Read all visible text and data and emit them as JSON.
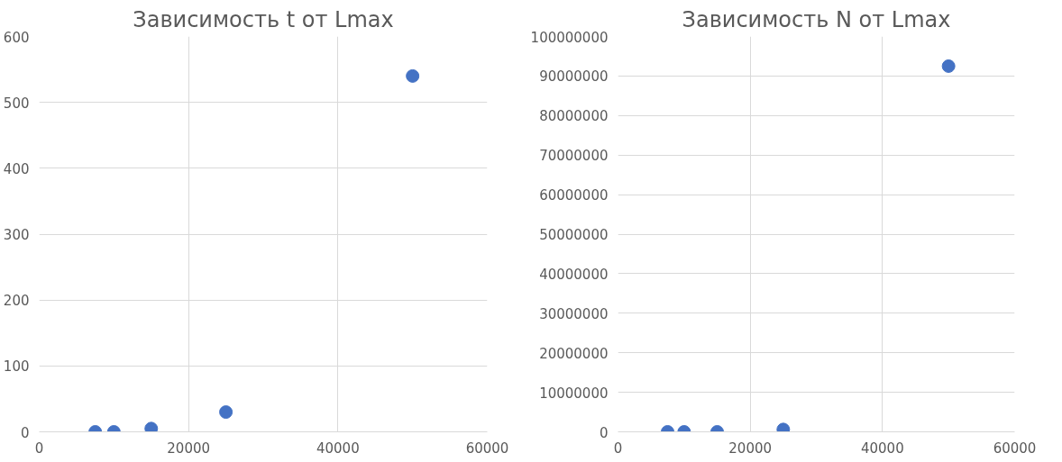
{
  "chart_data": [
    {
      "type": "scatter",
      "title": "Зависимость t от Lmax",
      "x": [
        7500,
        10000,
        15000,
        25000,
        50000
      ],
      "values": [
        0,
        0,
        5,
        30,
        540
      ],
      "color": "#4472c4",
      "marker": "circle",
      "xlim": [
        0,
        60000
      ],
      "xticks": [
        0,
        20000,
        40000,
        60000
      ],
      "ylim": [
        0,
        600
      ],
      "yticks": [
        0,
        100,
        200,
        300,
        400,
        500,
        600
      ],
      "grid": true
    },
    {
      "type": "scatter",
      "title": "Зависимость N от Lmax",
      "x": [
        7500,
        10000,
        15000,
        25000,
        50000
      ],
      "values": [
        0,
        0,
        0,
        600000,
        92500000
      ],
      "color": "#4472c4",
      "marker": "circle",
      "xlim": [
        0,
        60000
      ],
      "xticks": [
        0,
        20000,
        40000,
        60000
      ],
      "ylim": [
        0,
        100000000
      ],
      "yticks": [
        0,
        10000000,
        20000000,
        30000000,
        40000000,
        50000000,
        60000000,
        70000000,
        80000000,
        90000000,
        100000000
      ],
      "grid": true
    }
  ]
}
